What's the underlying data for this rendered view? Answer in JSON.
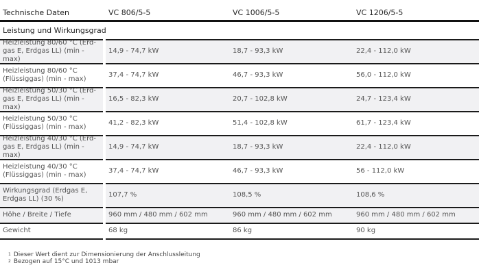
{
  "header": {
    "label": "Technische Daten",
    "models": [
      "VC 806/5-5",
      "VC 1006/5-5",
      "VC 1206/5-5"
    ]
  },
  "section": {
    "title": "Leistung und Wirkungsgrad"
  },
  "rows": [
    {
      "label": "Heizleistung 80/60 °C (Erd-gas E, Erdgas LL) (min - max)",
      "values": [
        "14,9 - 74,7 kW",
        "18,7 - 93,3 kW",
        "22,4 - 112,0 kW"
      ],
      "shaded": true
    },
    {
      "label": "Heizleistung 80/60 °C (Flüssiggas) (min - max)",
      "values": [
        "37,4 - 74,7 kW",
        "46,7 - 93,3 kW",
        "56,0 - 112,0 kW"
      ],
      "shaded": false
    },
    {
      "label": "Heizleistung 50/30 °C (Erd-gas E, Erdgas LL) (min - max)",
      "values": [
        "16,5 - 82,3 kW",
        "20,7 - 102,8 kW",
        "24,7 - 123,4 kW"
      ],
      "shaded": true
    },
    {
      "label": "Heizleistung 50/30 °C (Flüssiggas) (min - max)",
      "values": [
        "41,2 - 82,3 kW",
        "51,4 - 102,8 kW",
        "61,7 - 123,4 kW"
      ],
      "shaded": false
    },
    {
      "label": "Heizleistung 40/30 °C (Erd-gas E, Erdgas LL) (min - max)",
      "values": [
        "14,9 - 74,7 kW",
        "18,7 - 93,3 kW",
        "22,4 - 112,0 kW"
      ],
      "shaded": true
    },
    {
      "label": "Heizleistung 40/30 °C (Flüssiggas) (min - max)",
      "values": [
        "37,4 - 74,7 kW",
        "46,7 - 93,3 kW",
        "56 - 112,0 kW"
      ],
      "shaded": false
    },
    {
      "label": "Wirkungsgrad (Erdgas E, Erdgas LL) (30 %)",
      "values": [
        "107,7 %",
        "108,5 %",
        "108,6 %"
      ],
      "shaded": true
    },
    {
      "label": "Höhe / Breite / Tiefe",
      "values": [
        "960 mm / 480 mm / 602 mm",
        "960 mm / 480 mm / 602 mm",
        "960 mm / 480 mm / 602 mm"
      ],
      "shaded": true,
      "single": true
    },
    {
      "label": "Gewicht",
      "values": [
        "68 kg",
        "86 kg",
        "90 kg"
      ],
      "shaded": false,
      "single": true
    }
  ],
  "footnotes": [
    {
      "mark": "1",
      "text": "Dieser Wert dient zur Dimensionierung der Anschlussleitung"
    },
    {
      "mark": "2",
      "text": "Bezogen auf 15°C und 1013 mbar"
    }
  ]
}
